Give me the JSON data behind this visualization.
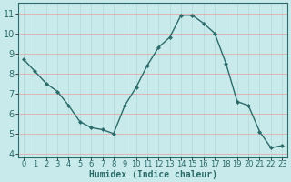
{
  "x": [
    0,
    1,
    2,
    3,
    4,
    5,
    6,
    7,
    8,
    9,
    10,
    11,
    12,
    13,
    14,
    15,
    16,
    17,
    18,
    19,
    20,
    21,
    22,
    23
  ],
  "y": [
    8.7,
    8.1,
    7.5,
    7.1,
    6.4,
    5.6,
    5.3,
    5.2,
    5.0,
    6.4,
    7.3,
    8.4,
    9.3,
    9.8,
    10.9,
    10.9,
    10.5,
    10.0,
    8.5,
    6.6,
    6.4,
    5.1,
    4.3,
    4.4
  ],
  "line_color": "#2d6b6b",
  "marker": "D",
  "marker_size": 2,
  "background_color": "#c8eaea",
  "grid_color_h": "#e8a0a0",
  "grid_color_v": "#b0d8d8",
  "xlabel": "Humidex (Indice chaleur)",
  "xlabel_fontsize": 7,
  "ylabel_ticks": [
    4,
    5,
    6,
    7,
    8,
    9,
    10,
    11
  ],
  "xlim": [
    -0.5,
    23.5
  ],
  "ylim": [
    3.8,
    11.5
  ],
  "tick_fontsize": 6,
  "linewidth": 1.0
}
